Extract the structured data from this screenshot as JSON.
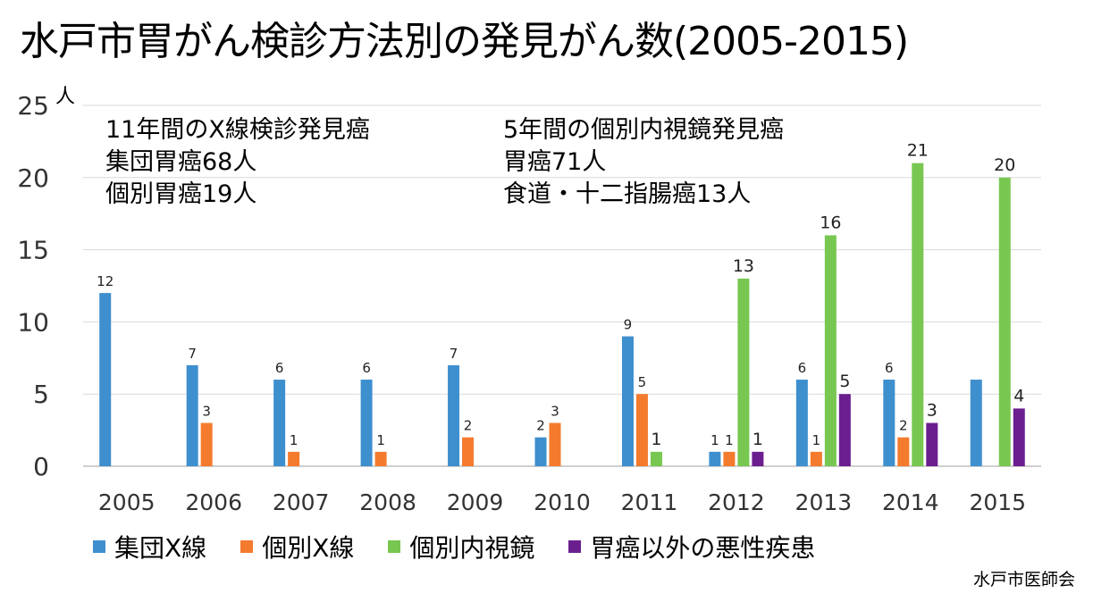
{
  "title": "水戸市胃がん検診方法別の発見がん数(2005-2015)",
  "unit_label": "人",
  "notes_left": [
    "11年間のX線検診発見癌",
    "集団胃癌68人",
    "個別胃癌19人"
  ],
  "notes_right": [
    "5年間の個別内視鏡発見癌",
    "胃癌71人",
    "食道・十二指腸癌13人"
  ],
  "source": "水戸市医師会",
  "chart_data": {
    "type": "bar",
    "categories": [
      "2005",
      "2006",
      "2007",
      "2008",
      "2009",
      "2010",
      "2011",
      "2012",
      "2013",
      "2014",
      "2015"
    ],
    "ylim": [
      0,
      25
    ],
    "yticks": [
      0,
      5,
      10,
      15,
      20,
      25
    ],
    "ytick_labels": [
      "0",
      "5",
      "10",
      "15",
      "20",
      "25"
    ],
    "grid": true,
    "legend_position": "bottom",
    "series": [
      {
        "name": "集団X線",
        "color": "#3E8FCE",
        "values": [
          12,
          7,
          6,
          6,
          7,
          2,
          9,
          1,
          6,
          6,
          6
        ],
        "labels": [
          "12",
          "7",
          "6",
          "6",
          "7",
          "2",
          "9",
          "1",
          "6",
          "6",
          ""
        ]
      },
      {
        "name": "個別X線",
        "color": "#F47B2E",
        "values": [
          null,
          3,
          1,
          1,
          2,
          3,
          5,
          1,
          1,
          2,
          null
        ],
        "labels": [
          "",
          "3",
          "1",
          "1",
          "2",
          "3",
          "5",
          "1",
          "1",
          "2",
          ""
        ]
      },
      {
        "name": "個別内視鏡",
        "color": "#77C751",
        "values": [
          null,
          null,
          null,
          null,
          null,
          null,
          1,
          13,
          16,
          21,
          20
        ],
        "labels": [
          "",
          "",
          "",
          "",
          "",
          "",
          "1",
          "13",
          "16",
          "21",
          "20"
        ]
      },
      {
        "name": "胃癌以外の悪性疾患",
        "color": "#6B1F8F",
        "values": [
          null,
          null,
          null,
          null,
          null,
          null,
          null,
          1,
          5,
          3,
          4
        ],
        "labels": [
          "",
          "",
          "",
          "",
          "",
          "",
          "",
          "1",
          "5",
          "3",
          "4"
        ]
      }
    ]
  }
}
